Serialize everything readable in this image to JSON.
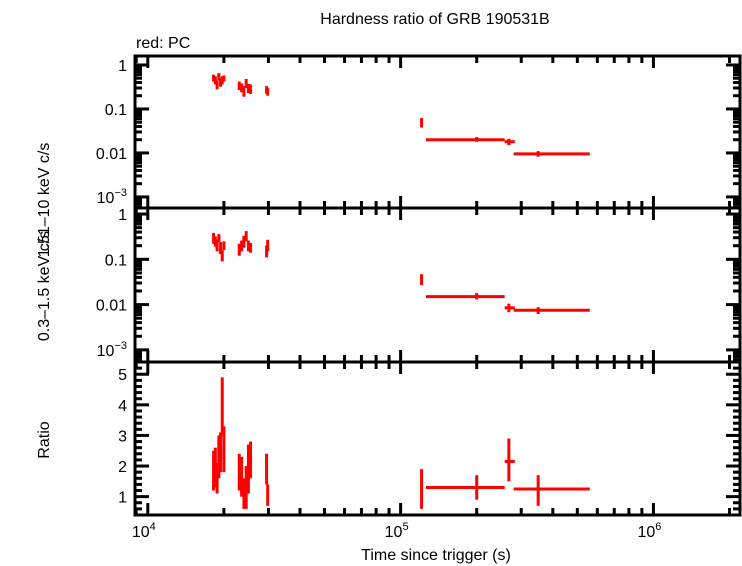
{
  "chart_data": {
    "type": "scatter",
    "title": "Hardness ratio of GRB 190531B",
    "legend_note": "red: PC",
    "xlabel": "Time since trigger (s)",
    "x_scale": "log",
    "xlim": [
      8900,
      2200000
    ],
    "x_ticks": [
      {
        "v": 10000,
        "m": "10",
        "e": "4"
      },
      {
        "v": 100000,
        "m": "10",
        "e": "5"
      },
      {
        "v": 1000000,
        "m": "10",
        "e": "6"
      }
    ],
    "series_color": "#ff0000",
    "panels": [
      {
        "ylabel": "1.51–10 keV c/s",
        "y_scale": "log",
        "ylim": [
          0.00056,
          1.6
        ],
        "y_ticks": [
          {
            "v": 1,
            "t": "1"
          },
          {
            "v": 0.1,
            "t": "0.1"
          },
          {
            "v": 0.01,
            "t": "0.01"
          },
          {
            "v": 0.001,
            "t": "10",
            "e": "−3"
          }
        ],
        "points": [
          [
            18200,
            18050,
            18350,
            0.5,
            0.42,
            0.6
          ],
          [
            18500,
            18350,
            18650,
            0.45,
            0.36,
            0.55
          ],
          [
            18800,
            18650,
            18950,
            0.35,
            0.28,
            0.45
          ],
          [
            19100,
            18950,
            19250,
            0.55,
            0.45,
            0.65
          ],
          [
            19400,
            19250,
            19550,
            0.4,
            0.32,
            0.5
          ],
          [
            19700,
            19550,
            19850,
            0.45,
            0.36,
            0.55
          ],
          [
            20000,
            19850,
            20150,
            0.5,
            0.42,
            0.58
          ],
          [
            23000,
            22800,
            23200,
            0.35,
            0.27,
            0.42
          ],
          [
            23500,
            23300,
            23700,
            0.3,
            0.24,
            0.38
          ],
          [
            24000,
            23800,
            24200,
            0.25,
            0.19,
            0.33
          ],
          [
            24500,
            24300,
            24700,
            0.4,
            0.3,
            0.48
          ],
          [
            25000,
            24800,
            25200,
            0.3,
            0.23,
            0.37
          ],
          [
            25500,
            25300,
            25700,
            0.28,
            0.22,
            0.36
          ],
          [
            29500,
            29350,
            29650,
            0.28,
            0.22,
            0.33
          ],
          [
            29800,
            29650,
            29950,
            0.25,
            0.2,
            0.3
          ],
          [
            121000,
            120000,
            122000,
            0.05,
            0.038,
            0.062
          ],
          [
            200000,
            126000,
            258000,
            0.02,
            0.018,
            0.023
          ],
          [
            268000,
            258000,
            283000,
            0.018,
            0.015,
            0.021
          ],
          [
            350000,
            280000,
            560000,
            0.0095,
            0.0082,
            0.011
          ]
        ]
      },
      {
        "ylabel": "0.3–1.5 keV c/s",
        "y_scale": "log",
        "ylim": [
          0.00054,
          1.36
        ],
        "y_ticks": [
          {
            "v": 1,
            "t": "1"
          },
          {
            "v": 0.1,
            "t": "0.1"
          },
          {
            "v": 0.01,
            "t": "0.01"
          },
          {
            "v": 0.001,
            "t": "10",
            "e": "−3"
          }
        ],
        "points": [
          [
            18200,
            18050,
            18350,
            0.3,
            0.22,
            0.38
          ],
          [
            18500,
            18350,
            18650,
            0.25,
            0.19,
            0.32
          ],
          [
            18800,
            18650,
            18950,
            0.2,
            0.15,
            0.27
          ],
          [
            19100,
            18950,
            19250,
            0.3,
            0.24,
            0.36
          ],
          [
            19400,
            19250,
            19550,
            0.18,
            0.13,
            0.24
          ],
          [
            19700,
            19550,
            19850,
            0.12,
            0.09,
            0.16
          ],
          [
            20000,
            19850,
            20150,
            0.2,
            0.16,
            0.25
          ],
          [
            23000,
            22800,
            23200,
            0.17,
            0.12,
            0.22
          ],
          [
            23500,
            23300,
            23700,
            0.2,
            0.15,
            0.26
          ],
          [
            24000,
            23800,
            24200,
            0.25,
            0.18,
            0.33
          ],
          [
            24500,
            24300,
            24700,
            0.35,
            0.25,
            0.42
          ],
          [
            25000,
            24800,
            25200,
            0.2,
            0.15,
            0.26
          ],
          [
            25500,
            25300,
            25700,
            0.18,
            0.14,
            0.23
          ],
          [
            29500,
            29350,
            29650,
            0.15,
            0.11,
            0.2
          ],
          [
            29800,
            29650,
            29950,
            0.2,
            0.15,
            0.27
          ],
          [
            121000,
            120000,
            122000,
            0.035,
            0.027,
            0.047
          ],
          [
            200000,
            126000,
            258000,
            0.015,
            0.013,
            0.018
          ],
          [
            268000,
            258000,
            283000,
            0.0085,
            0.0068,
            0.0105
          ],
          [
            350000,
            280000,
            560000,
            0.0075,
            0.0062,
            0.0088
          ]
        ]
      },
      {
        "ylabel": "Ratio",
        "y_scale": "linear",
        "ylim": [
          0.4,
          5.4
        ],
        "y_ticks": [
          {
            "v": 1,
            "t": "1"
          },
          {
            "v": 2,
            "t": "2"
          },
          {
            "v": 3,
            "t": "3"
          },
          {
            "v": 4,
            "t": "4"
          },
          {
            "v": 5,
            "t": "5"
          }
        ],
        "points": [
          [
            18200,
            18050,
            18350,
            1.8,
            1.2,
            2.5
          ],
          [
            18500,
            18350,
            18650,
            2.0,
            1.3,
            2.6
          ],
          [
            18800,
            18650,
            18950,
            1.5,
            1.1,
            2.1
          ],
          [
            19100,
            18950,
            19250,
            2.2,
            1.6,
            3.0
          ],
          [
            19400,
            19250,
            19550,
            2.4,
            1.8,
            3.1
          ],
          [
            19700,
            19550,
            19850,
            3.9,
            3.0,
            4.9
          ],
          [
            20000,
            19850,
            20150,
            2.6,
            1.8,
            3.3
          ],
          [
            23000,
            22800,
            23200,
            1.9,
            1.2,
            2.4
          ],
          [
            23500,
            23300,
            23700,
            1.5,
            1.0,
            2.3
          ],
          [
            24000,
            23800,
            24200,
            1.1,
            0.6,
            1.6
          ],
          [
            24500,
            24300,
            24700,
            1.2,
            0.6,
            2.0
          ],
          [
            25000,
            24800,
            25200,
            1.6,
            1.1,
            2.7
          ],
          [
            25500,
            25300,
            25700,
            2.2,
            1.6,
            2.8
          ],
          [
            29500,
            29350,
            29650,
            1.9,
            1.4,
            2.4
          ],
          [
            29800,
            29650,
            29950,
            1.0,
            0.7,
            1.4
          ],
          [
            121000,
            120000,
            122000,
            1.5,
            0.6,
            1.9
          ],
          [
            200000,
            126000,
            258000,
            1.3,
            0.9,
            1.7
          ],
          [
            268000,
            258000,
            283000,
            2.15,
            1.5,
            2.9
          ],
          [
            350000,
            280000,
            560000,
            1.25,
            0.7,
            1.7
          ]
        ]
      }
    ]
  }
}
